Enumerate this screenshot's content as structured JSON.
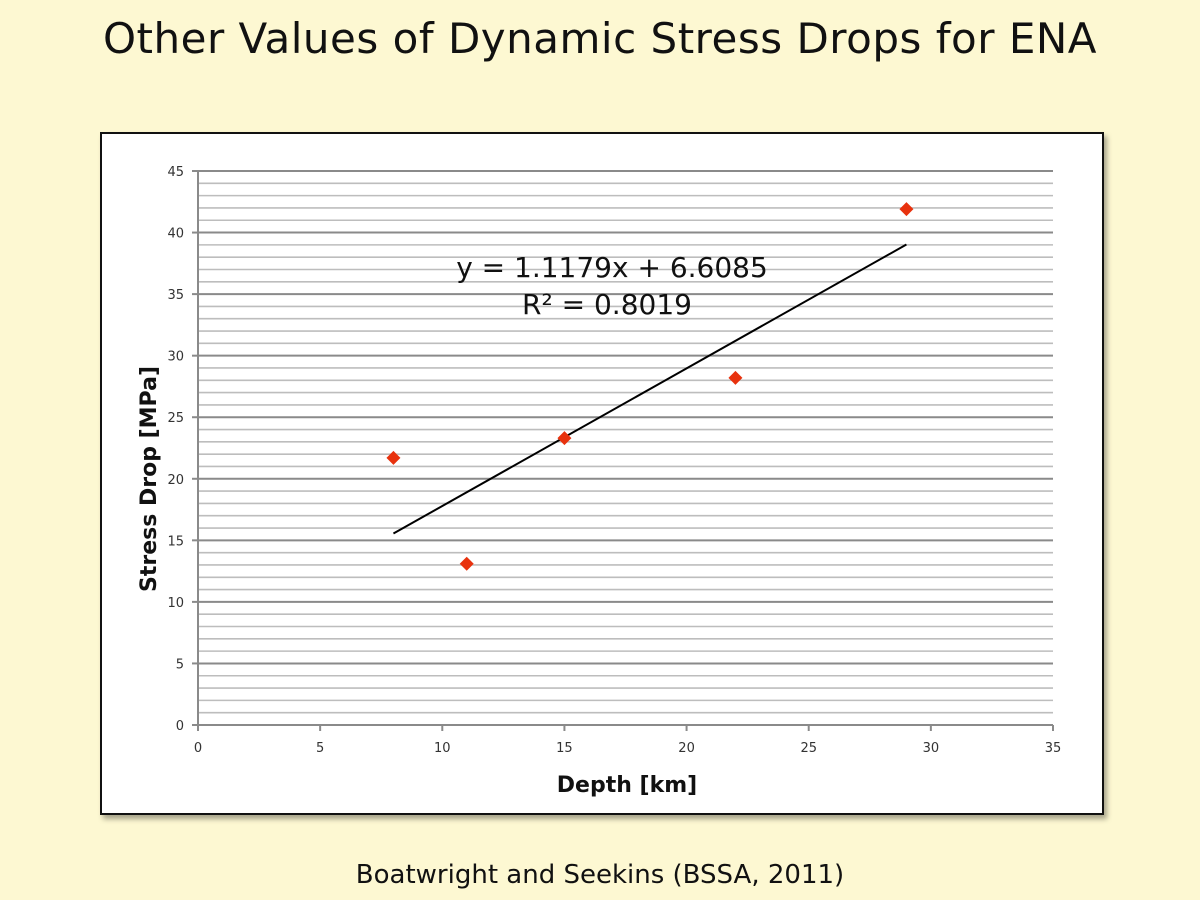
{
  "slide": {
    "title": "Other Values of Dynamic Stress Drops for ENA",
    "citation": "Boatwright and Seekins (BSSA, 2011)",
    "background_color": "#fdf8d2"
  },
  "chart_data": {
    "type": "scatter",
    "title": "",
    "xlabel": "Depth [km]",
    "ylabel": "Stress Drop [MPa]",
    "xlim": [
      0,
      35
    ],
    "ylim": [
      0,
      45
    ],
    "xticks": [
      0,
      5,
      10,
      15,
      20,
      25,
      30,
      35
    ],
    "yticks": [
      0,
      5,
      10,
      15,
      20,
      25,
      30,
      35,
      40,
      45
    ],
    "grid": {
      "major_y": 5,
      "minor_y": 1,
      "x": false
    },
    "marker": "diamond",
    "marker_color": "#e8320e",
    "points": [
      {
        "x": 8,
        "y": 21.7
      },
      {
        "x": 11,
        "y": 13.1
      },
      {
        "x": 15,
        "y": 23.3
      },
      {
        "x": 22,
        "y": 28.2
      },
      {
        "x": 29,
        "y": 41.9
      }
    ],
    "trendline": {
      "type": "linear",
      "slope": 1.1179,
      "intercept": 6.6085,
      "x_range": [
        8,
        29
      ],
      "equation_label": "y = 1.1179x + 6.6085",
      "r2_label": "R² = 0.8019"
    }
  }
}
